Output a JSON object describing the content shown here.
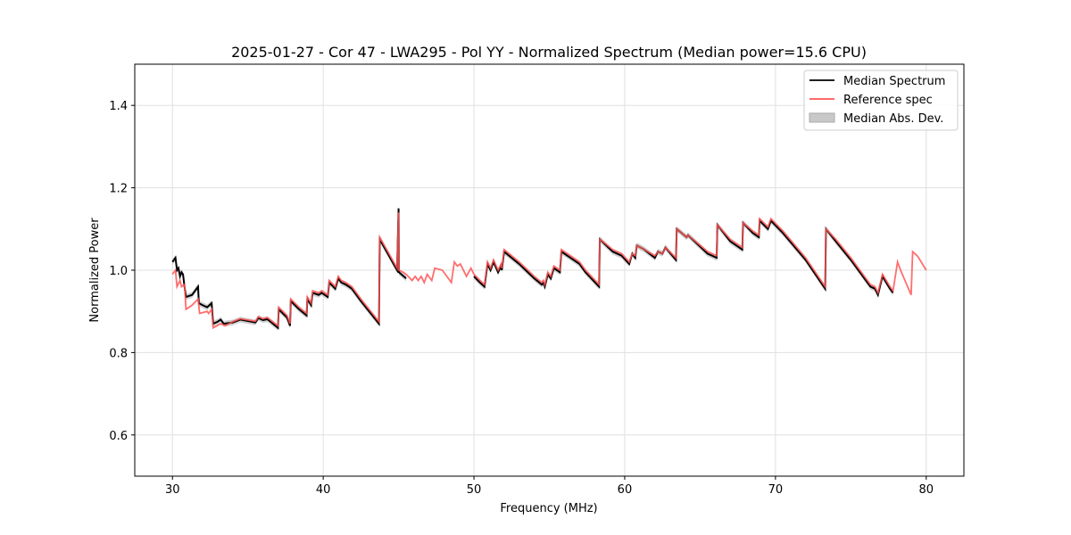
{
  "chart_data": {
    "type": "line",
    "title": "2025-01-27 - Cor 47 - LWA295 - Pol YY - Normalized Spectrum (Median power=15.6 CPU)",
    "xlabel": "Frequency (MHz)",
    "ylabel": "Normalized Power",
    "xlim": [
      27.5,
      82.5
    ],
    "ylim": [
      0.5,
      1.5
    ],
    "xticks": [
      30,
      40,
      50,
      60,
      70,
      80
    ],
    "xtick_labels": [
      "30",
      "40",
      "50",
      "60",
      "70",
      "80"
    ],
    "yticks": [
      0.6,
      0.8,
      1.0,
      1.2,
      1.4
    ],
    "ytick_labels": [
      "0.6",
      "0.8",
      "1.0",
      "1.2",
      "1.4"
    ],
    "grid": true,
    "legend_position": "top-right",
    "legend": [
      "Median Spectrum",
      "Reference spec",
      "Median Abs. Dev."
    ],
    "colors": {
      "median": "#000000",
      "reference": "#ff5555",
      "mad": "#b0b0b0"
    },
    "mad_approx": 0.007,
    "series": [
      {
        "name": "Reference spec",
        "points": [
          [
            30.0,
            0.99
          ],
          [
            30.2,
            1.0
          ],
          [
            30.3,
            0.96
          ],
          [
            30.5,
            0.975
          ],
          [
            30.6,
            0.96
          ],
          [
            30.8,
            0.965
          ],
          [
            30.9,
            0.905
          ],
          [
            31.3,
            0.915
          ],
          [
            31.7,
            0.93
          ],
          [
            31.8,
            0.895
          ],
          [
            32.3,
            0.9
          ],
          [
            32.4,
            0.895
          ],
          [
            32.6,
            0.905
          ],
          [
            32.7,
            0.86
          ],
          [
            33.2,
            0.87
          ],
          [
            33.5,
            0.865
          ],
          [
            34.0,
            0.875
          ],
          [
            34.5,
            0.882
          ],
          [
            35.5,
            0.876
          ],
          [
            35.7,
            0.887
          ],
          [
            36.0,
            0.882
          ],
          [
            36.3,
            0.885
          ],
          [
            37.0,
            0.865
          ],
          [
            37.05,
            0.91
          ],
          [
            37.6,
            0.89
          ],
          [
            37.8,
            0.87
          ],
          [
            37.85,
            0.93
          ],
          [
            38.4,
            0.91
          ],
          [
            38.9,
            0.895
          ],
          [
            38.95,
            0.935
          ],
          [
            39.2,
            0.92
          ],
          [
            39.3,
            0.95
          ],
          [
            39.7,
            0.945
          ],
          [
            39.9,
            0.95
          ],
          [
            40.3,
            0.94
          ],
          [
            40.4,
            0.975
          ],
          [
            40.8,
            0.96
          ],
          [
            41.0,
            0.985
          ],
          [
            41.2,
            0.975
          ],
          [
            41.5,
            0.97
          ],
          [
            41.9,
            0.96
          ],
          [
            42.5,
            0.93
          ],
          [
            43.7,
            0.875
          ],
          [
            43.75,
            1.08
          ],
          [
            44.9,
            1.005
          ],
          [
            45.0,
            1.14
          ],
          [
            45.02,
            1.0
          ],
          [
            45.3,
            0.995
          ],
          [
            45.5,
            0.99
          ],
          [
            45.9,
            0.975
          ],
          [
            46.1,
            0.985
          ],
          [
            46.3,
            0.975
          ],
          [
            46.5,
            0.985
          ],
          [
            46.7,
            0.97
          ],
          [
            46.9,
            0.99
          ],
          [
            47.2,
            0.975
          ],
          [
            47.4,
            1.005
          ],
          [
            47.9,
            1.0
          ],
          [
            48.5,
            0.97
          ],
          [
            48.7,
            1.02
          ],
          [
            48.9,
            1.01
          ],
          [
            49.1,
            1.015
          ],
          [
            49.5,
            0.985
          ],
          [
            49.8,
            1.005
          ],
          [
            50.0,
            0.99
          ],
          [
            50.4,
            0.975
          ],
          [
            50.7,
            0.965
          ],
          [
            50.9,
            1.02
          ],
          [
            51.1,
            1.005
          ],
          [
            51.3,
            1.025
          ],
          [
            51.6,
            1.0
          ],
          [
            51.8,
            1.015
          ],
          [
            51.85,
            1.005
          ],
          [
            52.0,
            1.05
          ],
          [
            53.0,
            1.02
          ],
          [
            54.0,
            0.985
          ],
          [
            54.5,
            0.97
          ],
          [
            54.6,
            0.975
          ],
          [
            54.7,
            0.965
          ],
          [
            54.9,
            0.995
          ],
          [
            55.1,
            0.985
          ],
          [
            55.3,
            1.01
          ],
          [
            55.7,
            1.0
          ],
          [
            55.8,
            1.05
          ],
          [
            56.6,
            1.03
          ],
          [
            57.0,
            1.02
          ],
          [
            57.4,
            1.0
          ],
          [
            58.3,
            0.965
          ],
          [
            58.35,
            1.075
          ],
          [
            59.2,
            1.05
          ],
          [
            59.8,
            1.04
          ],
          [
            60.3,
            1.02
          ],
          [
            60.5,
            1.04
          ],
          [
            60.7,
            1.035
          ],
          [
            60.8,
            1.06
          ],
          [
            61.3,
            1.05
          ],
          [
            62.0,
            1.035
          ],
          [
            62.2,
            1.045
          ],
          [
            62.5,
            1.04
          ],
          [
            62.7,
            1.055
          ],
          [
            63.4,
            1.03
          ],
          [
            63.45,
            1.1
          ],
          [
            64.1,
            1.08
          ],
          [
            64.2,
            1.085
          ],
          [
            65.5,
            1.045
          ],
          [
            66.1,
            1.035
          ],
          [
            66.15,
            1.11
          ],
          [
            67.0,
            1.075
          ],
          [
            67.8,
            1.055
          ],
          [
            67.85,
            1.115
          ],
          [
            68.5,
            1.095
          ],
          [
            68.9,
            1.085
          ],
          [
            68.95,
            1.125
          ],
          [
            69.5,
            1.105
          ],
          [
            69.7,
            1.125
          ],
          [
            70.5,
            1.095
          ],
          [
            72.0,
            1.03
          ],
          [
            73.3,
            0.96
          ],
          [
            73.35,
            1.1
          ],
          [
            74.0,
            1.075
          ],
          [
            75.0,
            1.03
          ],
          [
            76.3,
            0.965
          ],
          [
            76.6,
            0.96
          ],
          [
            76.8,
            0.945
          ],
          [
            77.1,
            0.99
          ],
          [
            77.6,
            0.96
          ],
          [
            77.8,
            0.95
          ],
          [
            78.1,
            1.02
          ],
          [
            78.3,
            1.0
          ],
          [
            79.0,
            0.94
          ],
          [
            79.1,
            1.045
          ],
          [
            79.4,
            1.035
          ],
          [
            79.5,
            1.03
          ],
          [
            80.0,
            1.0
          ]
        ]
      },
      {
        "name": "Median Spectrum",
        "segments": [
          [
            [
              30.0,
              1.02
            ],
            [
              30.1,
              1.025
            ],
            [
              30.2,
              1.03
            ],
            [
              30.3,
              1.0
            ],
            [
              30.4,
              1.005
            ],
            [
              30.5,
              0.985
            ],
            [
              30.6,
              0.995
            ],
            [
              30.7,
              0.99
            ],
            [
              30.8,
              0.96
            ],
            [
              30.9,
              0.935
            ],
            [
              31.3,
              0.94
            ],
            [
              31.7,
              0.96
            ],
            [
              31.75,
              0.92
            ],
            [
              32.0,
              0.915
            ],
            [
              32.3,
              0.91
            ],
            [
              32.6,
              0.92
            ],
            [
              32.7,
              0.87
            ],
            [
              33.0,
              0.875
            ],
            [
              33.2,
              0.88
            ],
            [
              33.4,
              0.87
            ],
            [
              34.0,
              0.873
            ],
            [
              34.5,
              0.88
            ],
            [
              35.5,
              0.873
            ],
            [
              35.7,
              0.884
            ],
            [
              36.0,
              0.879
            ],
            [
              36.3,
              0.881
            ],
            [
              37.0,
              0.86
            ],
            [
              37.05,
              0.905
            ],
            [
              37.6,
              0.885
            ],
            [
              37.8,
              0.865
            ],
            [
              37.85,
              0.925
            ],
            [
              38.4,
              0.905
            ],
            [
              38.9,
              0.89
            ],
            [
              38.95,
              0.93
            ],
            [
              39.2,
              0.915
            ],
            [
              39.3,
              0.945
            ],
            [
              39.7,
              0.94
            ],
            [
              39.9,
              0.945
            ],
            [
              40.3,
              0.935
            ],
            [
              40.4,
              0.97
            ],
            [
              40.8,
              0.955
            ],
            [
              41.0,
              0.98
            ],
            [
              41.2,
              0.97
            ],
            [
              41.5,
              0.965
            ],
            [
              41.9,
              0.955
            ],
            [
              42.5,
              0.925
            ],
            [
              43.7,
              0.87
            ],
            [
              43.75,
              1.075
            ],
            [
              44.9,
              1.0
            ],
            [
              45.0,
              1.15
            ],
            [
              45.02,
              0.995
            ],
            [
              45.5,
              0.98
            ]
          ],
          [
            [
              50.0,
              0.985
            ],
            [
              50.4,
              0.97
            ],
            [
              50.7,
              0.96
            ],
            [
              50.9,
              1.015
            ],
            [
              51.1,
              1.0
            ],
            [
              51.3,
              1.02
            ],
            [
              51.6,
              0.995
            ],
            [
              51.8,
              1.01
            ],
            [
              51.85,
              1.0
            ],
            [
              52.0,
              1.045
            ],
            [
              53.0,
              1.015
            ],
            [
              54.0,
              0.98
            ],
            [
              54.5,
              0.965
            ],
            [
              54.6,
              0.97
            ],
            [
              54.7,
              0.96
            ],
            [
              54.9,
              0.99
            ],
            [
              55.1,
              0.98
            ],
            [
              55.3,
              1.005
            ],
            [
              55.7,
              0.995
            ],
            [
              55.8,
              1.045
            ],
            [
              56.6,
              1.025
            ],
            [
              57.0,
              1.015
            ],
            [
              57.4,
              0.995
            ],
            [
              58.3,
              0.96
            ],
            [
              58.35,
              1.075
            ],
            [
              59.2,
              1.045
            ],
            [
              59.8,
              1.035
            ],
            [
              60.3,
              1.015
            ],
            [
              60.5,
              1.04
            ],
            [
              60.7,
              1.03
            ],
            [
              60.8,
              1.06
            ],
            [
              61.3,
              1.05
            ],
            [
              62.0,
              1.03
            ],
            [
              62.2,
              1.045
            ],
            [
              62.5,
              1.04
            ],
            [
              62.7,
              1.055
            ],
            [
              63.4,
              1.025
            ],
            [
              63.45,
              1.1
            ],
            [
              64.1,
              1.08
            ],
            [
              64.2,
              1.085
            ],
            [
              65.5,
              1.04
            ],
            [
              66.1,
              1.03
            ],
            [
              66.15,
              1.11
            ],
            [
              67.0,
              1.07
            ],
            [
              67.8,
              1.05
            ],
            [
              67.85,
              1.115
            ],
            [
              68.5,
              1.09
            ],
            [
              68.9,
              1.08
            ],
            [
              68.95,
              1.12
            ],
            [
              69.5,
              1.1
            ],
            [
              69.7,
              1.12
            ],
            [
              70.5,
              1.09
            ],
            [
              72.0,
              1.025
            ],
            [
              73.3,
              0.955
            ],
            [
              73.35,
              1.1
            ],
            [
              74.0,
              1.07
            ],
            [
              75.0,
              1.025
            ],
            [
              76.3,
              0.96
            ],
            [
              76.6,
              0.955
            ],
            [
              76.8,
              0.94
            ],
            [
              77.1,
              0.985
            ],
            [
              77.6,
              0.955
            ],
            [
              77.8,
              0.945
            ]
          ]
        ]
      }
    ]
  }
}
